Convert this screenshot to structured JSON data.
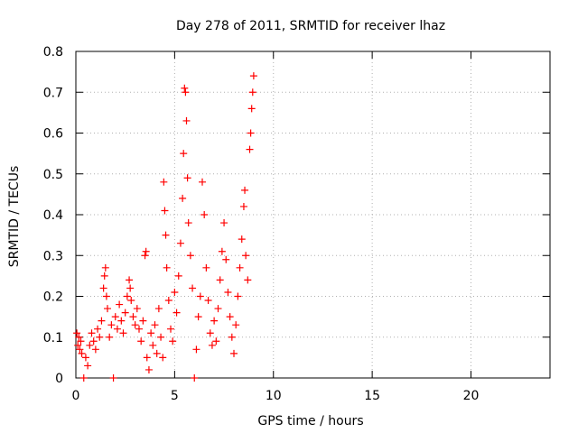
{
  "chart_data": {
    "type": "scatter",
    "title": "Day 278 of 2011, SRMTID for receiver lhaz",
    "xlabel": "GPS time / hours",
    "ylabel": "SRMTID / TECUs",
    "xlim": [
      0,
      24
    ],
    "ylim": [
      0,
      0.8
    ],
    "xticks": [
      "0",
      "5",
      "10",
      "15",
      "20"
    ],
    "yticks": [
      "0",
      "0.1",
      "0.2",
      "0.3",
      "0.4",
      "0.5",
      "0.6",
      "0.7",
      "0.8"
    ],
    "grid": true,
    "legend": "none",
    "series": [
      {
        "color": "#ff0000",
        "marker": "plus",
        "points": [
          [
            0.05,
            0.11
          ],
          [
            0.1,
            0.08
          ],
          [
            0.15,
            0.1
          ],
          [
            0.2,
            0.07
          ],
          [
            0.25,
            0.09
          ],
          [
            0.3,
            0.06
          ],
          [
            0.4,
            0.0
          ],
          [
            0.5,
            0.05
          ],
          [
            0.6,
            0.03
          ],
          [
            0.7,
            0.08
          ],
          [
            0.8,
            0.11
          ],
          [
            0.9,
            0.09
          ],
          [
            1.0,
            0.07
          ],
          [
            1.1,
            0.12
          ],
          [
            1.2,
            0.1
          ],
          [
            1.3,
            0.14
          ],
          [
            1.4,
            0.22
          ],
          [
            1.45,
            0.25
          ],
          [
            1.5,
            0.27
          ],
          [
            1.55,
            0.2
          ],
          [
            1.6,
            0.17
          ],
          [
            1.7,
            0.1
          ],
          [
            1.8,
            0.13
          ],
          [
            1.9,
            0.0
          ],
          [
            2.0,
            0.15
          ],
          [
            2.1,
            0.12
          ],
          [
            2.2,
            0.18
          ],
          [
            2.3,
            0.14
          ],
          [
            2.4,
            0.11
          ],
          [
            2.5,
            0.16
          ],
          [
            2.6,
            0.2
          ],
          [
            2.7,
            0.24
          ],
          [
            2.75,
            0.22
          ],
          [
            2.8,
            0.19
          ],
          [
            2.9,
            0.15
          ],
          [
            3.0,
            0.13
          ],
          [
            3.1,
            0.17
          ],
          [
            3.2,
            0.12
          ],
          [
            3.3,
            0.09
          ],
          [
            3.4,
            0.14
          ],
          [
            3.5,
            0.3
          ],
          [
            3.55,
            0.31
          ],
          [
            3.6,
            0.05
          ],
          [
            3.7,
            0.02
          ],
          [
            3.8,
            0.11
          ],
          [
            3.9,
            0.08
          ],
          [
            4.0,
            0.13
          ],
          [
            4.1,
            0.06
          ],
          [
            4.2,
            0.17
          ],
          [
            4.3,
            0.1
          ],
          [
            4.4,
            0.05
          ],
          [
            4.45,
            0.48
          ],
          [
            4.5,
            0.41
          ],
          [
            4.55,
            0.35
          ],
          [
            4.6,
            0.27
          ],
          [
            4.7,
            0.19
          ],
          [
            4.8,
            0.12
          ],
          [
            4.9,
            0.09
          ],
          [
            5.0,
            0.21
          ],
          [
            5.1,
            0.16
          ],
          [
            5.2,
            0.25
          ],
          [
            5.3,
            0.33
          ],
          [
            5.4,
            0.44
          ],
          [
            5.45,
            0.55
          ],
          [
            5.5,
            0.71
          ],
          [
            5.55,
            0.7
          ],
          [
            5.6,
            0.63
          ],
          [
            5.65,
            0.49
          ],
          [
            5.7,
            0.38
          ],
          [
            5.8,
            0.3
          ],
          [
            5.9,
            0.22
          ],
          [
            6.0,
            0.0
          ],
          [
            6.1,
            0.07
          ],
          [
            6.2,
            0.15
          ],
          [
            6.3,
            0.2
          ],
          [
            6.4,
            0.48
          ],
          [
            6.5,
            0.4
          ],
          [
            6.6,
            0.27
          ],
          [
            6.7,
            0.19
          ],
          [
            6.8,
            0.11
          ],
          [
            6.9,
            0.08
          ],
          [
            7.0,
            0.14
          ],
          [
            7.1,
            0.09
          ],
          [
            7.2,
            0.17
          ],
          [
            7.3,
            0.24
          ],
          [
            7.4,
            0.31
          ],
          [
            7.5,
            0.38
          ],
          [
            7.6,
            0.29
          ],
          [
            7.7,
            0.21
          ],
          [
            7.8,
            0.15
          ],
          [
            7.9,
            0.1
          ],
          [
            8.0,
            0.06
          ],
          [
            8.1,
            0.13
          ],
          [
            8.2,
            0.2
          ],
          [
            8.3,
            0.27
          ],
          [
            8.4,
            0.34
          ],
          [
            8.5,
            0.42
          ],
          [
            8.55,
            0.46
          ],
          [
            8.6,
            0.3
          ],
          [
            8.7,
            0.24
          ],
          [
            8.8,
            0.56
          ],
          [
            8.85,
            0.6
          ],
          [
            8.9,
            0.66
          ],
          [
            8.95,
            0.7
          ],
          [
            9.0,
            0.74
          ]
        ]
      }
    ]
  }
}
